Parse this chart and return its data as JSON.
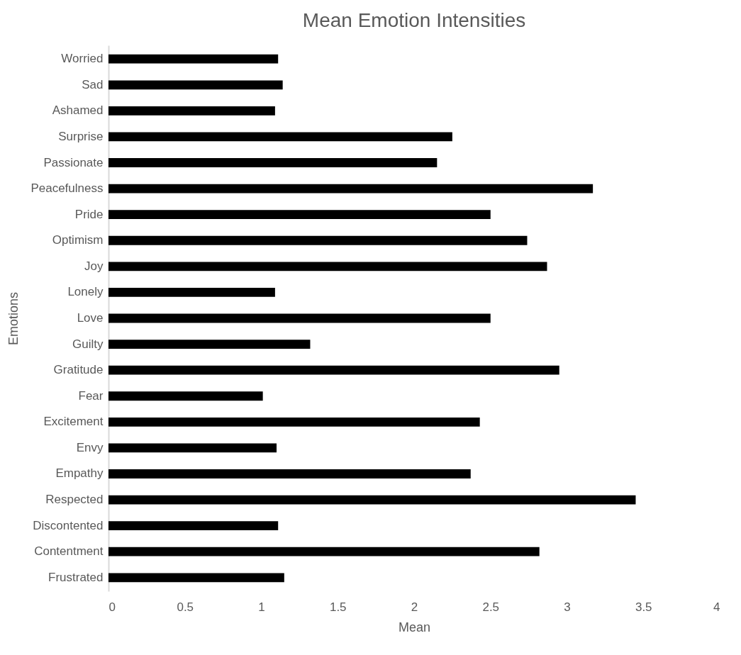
{
  "chart_data": {
    "type": "bar",
    "orientation": "horizontal",
    "title": "Mean Emotion Intensities",
    "xlabel": "Mean",
    "ylabel": "Emotions",
    "categories": [
      "Worried",
      "Sad",
      "Ashamed",
      "Surprise",
      "Passionate",
      "Peacefulness",
      "Pride",
      "Optimism",
      "Joy",
      "Lonely",
      "Love",
      "Guilty",
      "Gratitude",
      "Fear",
      "Excitement",
      "Envy",
      "Empathy",
      "Respected",
      "Discontented",
      "Contentment",
      "Frustrated"
    ],
    "values": [
      1.11,
      1.14,
      1.09,
      2.25,
      2.15,
      3.17,
      2.5,
      2.74,
      2.87,
      1.09,
      2.5,
      1.32,
      2.95,
      1.01,
      2.43,
      1.1,
      2.37,
      3.45,
      1.11,
      2.82,
      1.15
    ],
    "color": "#000000",
    "xlim": [
      0,
      4
    ],
    "xticks": [
      0,
      0.5,
      1,
      1.5,
      2,
      2.5,
      3,
      3.5,
      4
    ],
    "grid": false
  }
}
